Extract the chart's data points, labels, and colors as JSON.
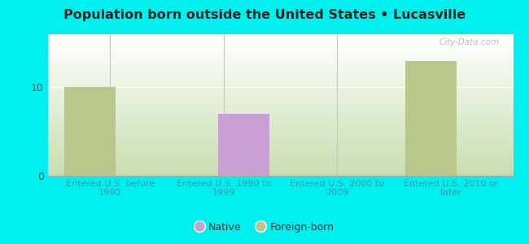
{
  "title": "Population born outside the United States • Lucasville",
  "categories": [
    "Entered U.S. before\n1990",
    "Entered U.S. 1990 to\n1999",
    "Entered U.S. 2000 to\n2009",
    "Entered U.S. 2010 or\nlater"
  ],
  "native_values": [
    0,
    7,
    0,
    0
  ],
  "foreign_values": [
    10,
    0,
    0,
    13
  ],
  "native_color": "#c9a0d4",
  "foreign_color": "#b8c88a",
  "ylim": [
    0,
    16
  ],
  "yticks": [
    0,
    10
  ],
  "outer_bg": "#00efef",
  "plot_bg_top_left": "#ffffff",
  "plot_bg_bottom": "#c8ddb0",
  "watermark": "City-Data.com",
  "legend_native": "Native",
  "legend_foreign": "Foreign-born",
  "bar_width": 0.45,
  "title_color": "#222222",
  "tick_label_color": "#3399aa",
  "ytick_color": "#555555"
}
